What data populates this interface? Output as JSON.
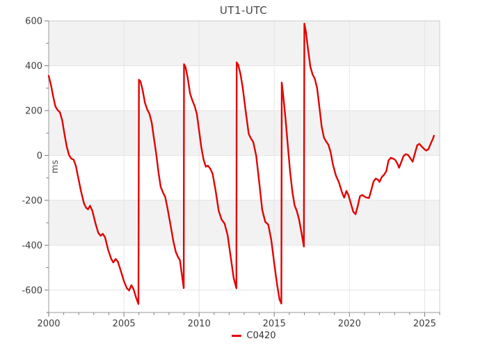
{
  "title": "UT1-UTC",
  "legend": {
    "position": "bottom-center",
    "items": [
      {
        "label": "C0420",
        "marker": "line"
      }
    ]
  },
  "chart_data": {
    "type": "line",
    "title": "UT1-UTC",
    "xlabel": "",
    "ylabel": "ms",
    "xlim": [
      2000,
      2026
    ],
    "ylim": [
      -700,
      600
    ],
    "x_major_ticks": [
      2000,
      2005,
      2010,
      2015,
      2020,
      2025
    ],
    "x_minor_step": 1,
    "y_major_ticks": [
      600,
      400,
      200,
      0,
      -200,
      -400,
      -600
    ],
    "y_minor_step": 100,
    "grid": true,
    "bands": [
      [
        600,
        400
      ],
      [
        200,
        0
      ],
      [
        -200,
        -400
      ]
    ],
    "band_color": "#f2f2f2",
    "grid_color": "#e4e4e4",
    "border_color": "#cccccc",
    "axis_color": "#999999",
    "tick_color": "#777777",
    "legend_position": "bottom-center",
    "series": [
      {
        "name": "C0420",
        "color": "#e30000",
        "points": [
          [
            2000.0,
            355
          ],
          [
            2000.15,
            315
          ],
          [
            2000.3,
            262
          ],
          [
            2000.45,
            218
          ],
          [
            2000.6,
            202
          ],
          [
            2000.75,
            192
          ],
          [
            2000.9,
            155
          ],
          [
            2001.05,
            95
          ],
          [
            2001.2,
            40
          ],
          [
            2001.35,
            2
          ],
          [
            2001.5,
            -14
          ],
          [
            2001.65,
            -18
          ],
          [
            2001.8,
            -45
          ],
          [
            2001.95,
            -95
          ],
          [
            2002.15,
            -160
          ],
          [
            2002.35,
            -215
          ],
          [
            2002.5,
            -234
          ],
          [
            2002.62,
            -240
          ],
          [
            2002.75,
            -224
          ],
          [
            2002.9,
            -246
          ],
          [
            2003.1,
            -300
          ],
          [
            2003.3,
            -345
          ],
          [
            2003.45,
            -358
          ],
          [
            2003.6,
            -349
          ],
          [
            2003.75,
            -366
          ],
          [
            2003.95,
            -420
          ],
          [
            2004.15,
            -460
          ],
          [
            2004.3,
            -477
          ],
          [
            2004.45,
            -461
          ],
          [
            2004.6,
            -473
          ],
          [
            2004.8,
            -516
          ],
          [
            2005.0,
            -560
          ],
          [
            2005.2,
            -592
          ],
          [
            2005.35,
            -602
          ],
          [
            2005.5,
            -578
          ],
          [
            2005.65,
            -597
          ],
          [
            2005.8,
            -632
          ],
          [
            2005.97,
            -662
          ],
          [
            2006.0,
            338
          ],
          [
            2006.1,
            330
          ],
          [
            2006.25,
            290
          ],
          [
            2006.4,
            235
          ],
          [
            2006.55,
            205
          ],
          [
            2006.7,
            186
          ],
          [
            2006.85,
            146
          ],
          [
            2007.0,
            76
          ],
          [
            2007.15,
            6
          ],
          [
            2007.3,
            -75
          ],
          [
            2007.45,
            -140
          ],
          [
            2007.6,
            -165
          ],
          [
            2007.75,
            -186
          ],
          [
            2007.9,
            -236
          ],
          [
            2008.1,
            -310
          ],
          [
            2008.3,
            -386
          ],
          [
            2008.45,
            -430
          ],
          [
            2008.6,
            -453
          ],
          [
            2008.72,
            -465
          ],
          [
            2008.86,
            -532
          ],
          [
            2008.98,
            -591
          ],
          [
            2009.0,
            407
          ],
          [
            2009.1,
            394
          ],
          [
            2009.25,
            344
          ],
          [
            2009.4,
            276
          ],
          [
            2009.55,
            246
          ],
          [
            2009.7,
            221
          ],
          [
            2009.85,
            186
          ],
          [
            2010.0,
            110
          ],
          [
            2010.15,
            36
          ],
          [
            2010.3,
            -18
          ],
          [
            2010.45,
            -50
          ],
          [
            2010.58,
            -45
          ],
          [
            2010.75,
            -60
          ],
          [
            2010.9,
            -82
          ],
          [
            2011.1,
            -156
          ],
          [
            2011.3,
            -246
          ],
          [
            2011.5,
            -286
          ],
          [
            2011.7,
            -304
          ],
          [
            2011.9,
            -356
          ],
          [
            2012.1,
            -450
          ],
          [
            2012.3,
            -546
          ],
          [
            2012.48,
            -592
          ],
          [
            2012.5,
            415
          ],
          [
            2012.6,
            404
          ],
          [
            2012.75,
            364
          ],
          [
            2012.9,
            304
          ],
          [
            2013.1,
            196
          ],
          [
            2013.3,
            96
          ],
          [
            2013.45,
            76
          ],
          [
            2013.6,
            60
          ],
          [
            2013.8,
            -2
          ],
          [
            2014.0,
            -120
          ],
          [
            2014.2,
            -242
          ],
          [
            2014.4,
            -296
          ],
          [
            2014.6,
            -308
          ],
          [
            2014.8,
            -376
          ],
          [
            2015.0,
            -482
          ],
          [
            2015.2,
            -582
          ],
          [
            2015.35,
            -642
          ],
          [
            2015.47,
            -660
          ],
          [
            2015.5,
            325
          ],
          [
            2015.6,
            264
          ],
          [
            2015.75,
            164
          ],
          [
            2015.9,
            44
          ],
          [
            2016.05,
            -70
          ],
          [
            2016.2,
            -160
          ],
          [
            2016.35,
            -222
          ],
          [
            2016.5,
            -248
          ],
          [
            2016.65,
            -286
          ],
          [
            2016.8,
            -340
          ],
          [
            2016.97,
            -406
          ],
          [
            2017.0,
            588
          ],
          [
            2017.1,
            554
          ],
          [
            2017.25,
            470
          ],
          [
            2017.4,
            396
          ],
          [
            2017.55,
            361
          ],
          [
            2017.7,
            341
          ],
          [
            2017.85,
            300
          ],
          [
            2018.0,
            216
          ],
          [
            2018.15,
            130
          ],
          [
            2018.3,
            80
          ],
          [
            2018.45,
            62
          ],
          [
            2018.6,
            48
          ],
          [
            2018.75,
            14
          ],
          [
            2018.9,
            -40
          ],
          [
            2019.1,
            -90
          ],
          [
            2019.3,
            -120
          ],
          [
            2019.5,
            -164
          ],
          [
            2019.65,
            -188
          ],
          [
            2019.8,
            -158
          ],
          [
            2019.95,
            -180
          ],
          [
            2020.1,
            -216
          ],
          [
            2020.25,
            -250
          ],
          [
            2020.4,
            -262
          ],
          [
            2020.55,
            -226
          ],
          [
            2020.7,
            -182
          ],
          [
            2020.85,
            -176
          ],
          [
            2021.0,
            -183
          ],
          [
            2021.15,
            -188
          ],
          [
            2021.3,
            -190
          ],
          [
            2021.45,
            -154
          ],
          [
            2021.6,
            -116
          ],
          [
            2021.75,
            -103
          ],
          [
            2021.9,
            -108
          ],
          [
            2022.0,
            -118
          ],
          [
            2022.15,
            -96
          ],
          [
            2022.3,
            -86
          ],
          [
            2022.45,
            -70
          ],
          [
            2022.6,
            -22
          ],
          [
            2022.75,
            -10
          ],
          [
            2022.9,
            -14
          ],
          [
            2023.05,
            -20
          ],
          [
            2023.2,
            -38
          ],
          [
            2023.3,
            -55
          ],
          [
            2023.45,
            -28
          ],
          [
            2023.6,
            -2
          ],
          [
            2023.75,
            6
          ],
          [
            2023.9,
            2
          ],
          [
            2024.05,
            -12
          ],
          [
            2024.2,
            -28
          ],
          [
            2024.35,
            8
          ],
          [
            2024.5,
            45
          ],
          [
            2024.65,
            52
          ],
          [
            2024.8,
            40
          ],
          [
            2024.95,
            30
          ],
          [
            2025.1,
            22
          ],
          [
            2025.25,
            28
          ],
          [
            2025.4,
            52
          ],
          [
            2025.55,
            75
          ],
          [
            2025.62,
            88
          ]
        ]
      }
    ]
  }
}
